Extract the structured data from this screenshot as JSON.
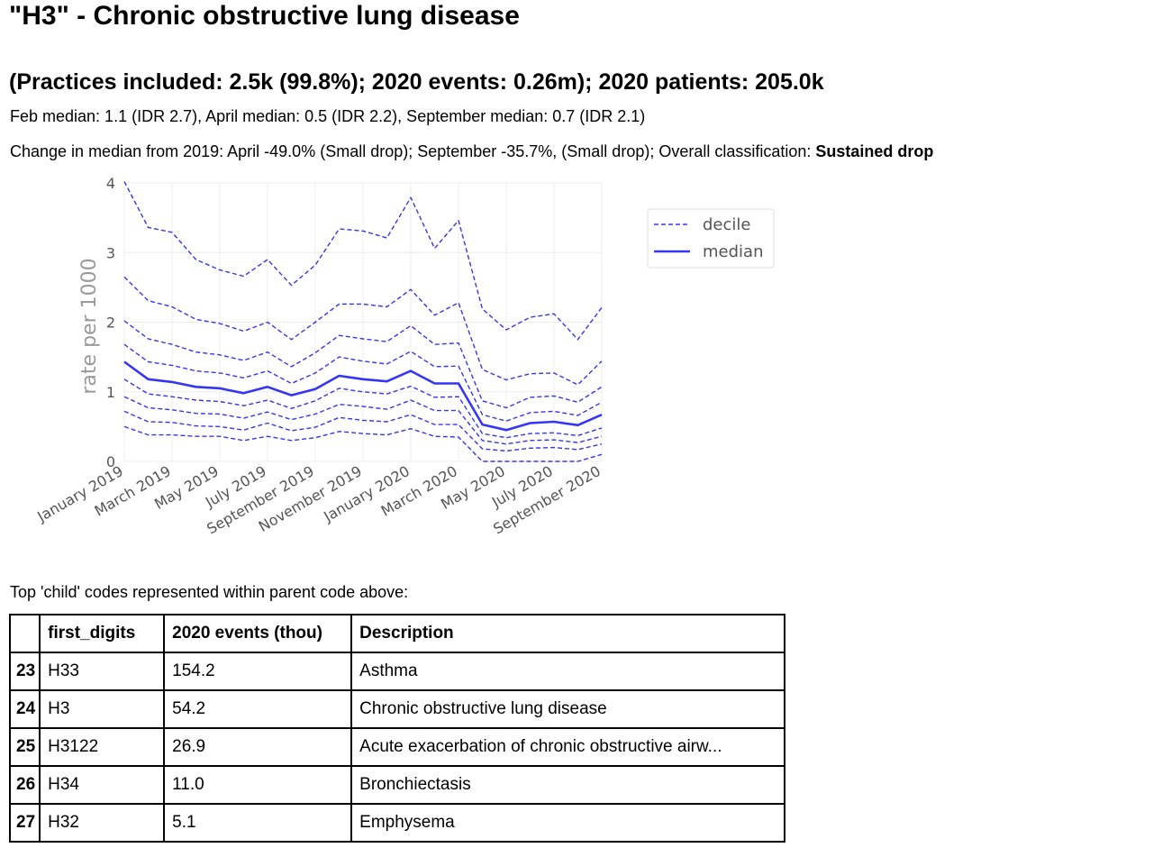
{
  "title": "\"H3\" - Chronic obstructive lung disease",
  "subtitle": "(Practices included: 2.5k (99.8%); 2020 events: 0.26m); 2020 patients: 205.0k",
  "medians_line": "Feb median: 1.1 (IDR 2.7), April median: 0.5 (IDR 2.2), September median: 0.7 (IDR 2.1)",
  "change_line": {
    "prefix": "Change in median from 2019: April -49.0% (Small drop); September -35.7%, (Small drop); Overall classification: ",
    "classification": "Sustained drop"
  },
  "chart_data": {
    "type": "line",
    "title": "",
    "xlabel": "",
    "ylabel": "rate per 1000",
    "ylim": [
      0,
      4
    ],
    "yticks": [
      0,
      1,
      2,
      3,
      4
    ],
    "grid": true,
    "legend_position": "top-right",
    "legend": [
      "decile",
      "median"
    ],
    "color": "#3535f5",
    "x": [
      "January 2019",
      "February 2019",
      "March 2019",
      "April 2019",
      "May 2019",
      "June 2019",
      "July 2019",
      "August 2019",
      "September 2019",
      "October 2019",
      "November 2019",
      "December 2019",
      "January 2020",
      "February 2020",
      "March 2020",
      "April 2020",
      "May 2020",
      "June 2020",
      "July 2020",
      "August 2020",
      "September 2020"
    ],
    "xtick_labels": [
      "January 2019",
      "March 2019",
      "May 2019",
      "July 2019",
      "September 2019",
      "November 2019",
      "January 2020",
      "March 2020",
      "May 2020",
      "July 2020",
      "September 2020"
    ],
    "xtick_indices": [
      0,
      2,
      4,
      6,
      8,
      10,
      12,
      14,
      16,
      18,
      20
    ],
    "series": [
      {
        "name": "decile",
        "style": "dashed",
        "values": [
          0.5,
          0.38,
          0.38,
          0.36,
          0.36,
          0.3,
          0.36,
          0.3,
          0.34,
          0.43,
          0.4,
          0.38,
          0.47,
          0.36,
          0.35,
          0.0,
          0.0,
          0.0,
          0.0,
          0.0,
          0.1
        ]
      },
      {
        "style": "dashed",
        "values": [
          0.72,
          0.57,
          0.56,
          0.51,
          0.5,
          0.45,
          0.55,
          0.44,
          0.49,
          0.63,
          0.59,
          0.57,
          0.67,
          0.53,
          0.53,
          0.18,
          0.15,
          0.19,
          0.2,
          0.17,
          0.25
        ]
      },
      {
        "style": "dashed",
        "values": [
          0.93,
          0.77,
          0.74,
          0.69,
          0.68,
          0.62,
          0.71,
          0.6,
          0.68,
          0.82,
          0.79,
          0.75,
          0.88,
          0.73,
          0.73,
          0.3,
          0.25,
          0.3,
          0.31,
          0.27,
          0.36
        ]
      },
      {
        "style": "dashed",
        "values": [
          1.18,
          0.97,
          0.93,
          0.88,
          0.86,
          0.8,
          0.88,
          0.76,
          0.87,
          1.05,
          1.0,
          0.97,
          1.08,
          0.92,
          0.93,
          0.4,
          0.34,
          0.4,
          0.41,
          0.37,
          0.48
        ]
      },
      {
        "name": "median",
        "style": "solid",
        "values": [
          1.43,
          1.18,
          1.14,
          1.07,
          1.05,
          0.98,
          1.07,
          0.95,
          1.04,
          1.23,
          1.18,
          1.15,
          1.3,
          1.12,
          1.12,
          0.53,
          0.45,
          0.55,
          0.57,
          0.52,
          0.67
        ]
      },
      {
        "style": "dashed",
        "values": [
          1.68,
          1.43,
          1.38,
          1.3,
          1.27,
          1.2,
          1.3,
          1.12,
          1.27,
          1.5,
          1.44,
          1.4,
          1.58,
          1.36,
          1.37,
          0.67,
          0.58,
          0.7,
          0.72,
          0.66,
          0.85
        ]
      },
      {
        "style": "dashed",
        "values": [
          2.02,
          1.76,
          1.68,
          1.57,
          1.53,
          1.45,
          1.57,
          1.36,
          1.56,
          1.81,
          1.76,
          1.72,
          1.95,
          1.68,
          1.7,
          0.87,
          0.77,
          0.92,
          0.94,
          0.85,
          1.07
        ]
      },
      {
        "style": "dashed",
        "values": [
          2.65,
          2.31,
          2.22,
          2.04,
          1.98,
          1.87,
          2.0,
          1.75,
          2.0,
          2.26,
          2.26,
          2.22,
          2.47,
          2.1,
          2.28,
          1.32,
          1.17,
          1.26,
          1.27,
          1.1,
          1.44
        ]
      },
      {
        "style": "dashed",
        "values": [
          4.02,
          3.36,
          3.29,
          2.9,
          2.75,
          2.66,
          2.9,
          2.53,
          2.82,
          3.34,
          3.31,
          3.21,
          3.79,
          3.06,
          3.46,
          2.19,
          1.89,
          2.07,
          2.12,
          1.75,
          2.21
        ]
      }
    ]
  },
  "table_caption": "Top 'child' codes represented within parent code above:",
  "table": {
    "headers": [
      "",
      "first_digits",
      "2020 events (thou)",
      "Description"
    ],
    "rows": [
      {
        "index": "23",
        "code": "H33",
        "events": "154.2",
        "description": "Asthma"
      },
      {
        "index": "24",
        "code": "H3",
        "events": "54.2",
        "description": "Chronic obstructive lung disease"
      },
      {
        "index": "25",
        "code": "H3122",
        "events": "26.9",
        "description": "Acute exacerbation of chronic obstructive airw..."
      },
      {
        "index": "26",
        "code": "H34",
        "events": "11.0",
        "description": "Bronchiectasis"
      },
      {
        "index": "27",
        "code": "H32",
        "events": "5.1",
        "description": "Emphysema"
      }
    ]
  }
}
